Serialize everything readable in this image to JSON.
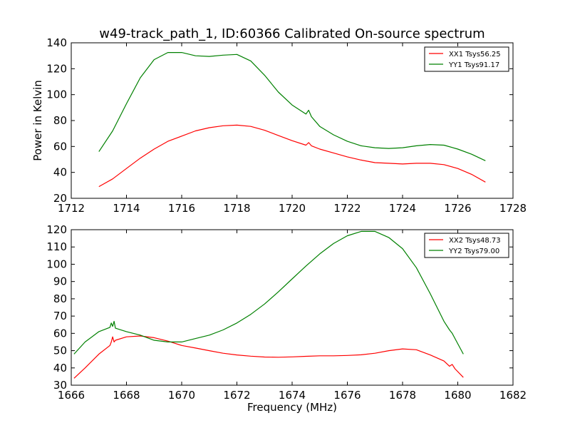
{
  "figure": {
    "title": "w49-track_path_1, ID:60366 Calibrated On-source spectrum",
    "xlabel": "Frequency (MHz)"
  },
  "colors": {
    "XX": "#ff0000",
    "YY": "#008000",
    "background": "#ffffff",
    "axes": "#000000"
  },
  "chart_data": [
    {
      "type": "line",
      "title": "w49-track_path_1, ID:60366 Calibrated On-source spectrum",
      "xlabel": "",
      "ylabel": "Power in Kelvin",
      "xlim": [
        1712,
        1728
      ],
      "ylim": [
        20,
        140
      ],
      "xticks": [
        "1712",
        "1714",
        "1716",
        "1718",
        "1720",
        "1722",
        "1724",
        "1726",
        "1728"
      ],
      "yticks": [
        "20",
        "40",
        "60",
        "80",
        "100",
        "120",
        "140"
      ],
      "grid": false,
      "legend_position": "top-right",
      "series": [
        {
          "name": "XX1 Tsys56.25",
          "color": "#ff0000",
          "x": [
            1713.0,
            1713.5,
            1714.0,
            1714.5,
            1715.0,
            1715.5,
            1716.0,
            1716.5,
            1717.0,
            1717.5,
            1718.0,
            1718.5,
            1719.0,
            1719.5,
            1720.0,
            1720.5,
            1720.6,
            1720.7,
            1721.0,
            1721.5,
            1722.0,
            1722.5,
            1723.0,
            1723.5,
            1724.0,
            1724.5,
            1725.0,
            1725.5,
            1726.0,
            1726.5,
            1727.0
          ],
          "y": [
            29,
            35,
            43,
            51,
            58,
            64,
            68,
            72,
            74.5,
            76,
            76.5,
            75.5,
            72.5,
            68.5,
            64.5,
            61,
            63,
            60.5,
            58,
            55,
            52,
            49.5,
            47.5,
            47,
            46.5,
            47,
            47,
            46,
            43,
            38.5,
            32.5
          ]
        },
        {
          "name": "YY1 Tsys91.17",
          "color": "#008000",
          "x": [
            1713.0,
            1713.5,
            1714.0,
            1714.5,
            1715.0,
            1715.5,
            1716.0,
            1716.5,
            1717.0,
            1717.5,
            1718.0,
            1718.5,
            1719.0,
            1719.5,
            1720.0,
            1720.5,
            1720.6,
            1720.7,
            1721.0,
            1721.5,
            1722.0,
            1722.5,
            1723.0,
            1723.5,
            1724.0,
            1724.5,
            1725.0,
            1725.5,
            1726.0,
            1726.5,
            1727.0
          ],
          "y": [
            56,
            72,
            93,
            113,
            127,
            132.5,
            132.5,
            130,
            129.5,
            130.5,
            131,
            126,
            115,
            102,
            92,
            85,
            88,
            83,
            75.5,
            69,
            64,
            60.5,
            59,
            58.5,
            59,
            60.5,
            61.5,
            61,
            58,
            54,
            49
          ]
        }
      ]
    },
    {
      "type": "line",
      "title": "",
      "xlabel": "Frequency (MHz)",
      "ylabel": "",
      "xlim": [
        1666,
        1682
      ],
      "ylim": [
        30,
        120
      ],
      "xticks": [
        "1666",
        "1668",
        "1670",
        "1672",
        "1674",
        "1676",
        "1678",
        "1680",
        "1682"
      ],
      "yticks": [
        "30",
        "40",
        "50",
        "60",
        "70",
        "80",
        "90",
        "100",
        "110",
        "120"
      ],
      "grid": false,
      "legend_position": "top-right",
      "series": [
        {
          "name": "XX2 Tsys48.73",
          "color": "#ff0000",
          "x": [
            1666.1,
            1666.5,
            1667.0,
            1667.4,
            1667.45,
            1667.5,
            1667.55,
            1667.6,
            1668.0,
            1668.5,
            1669.0,
            1669.5,
            1670.0,
            1670.5,
            1671.0,
            1671.5,
            1672.0,
            1672.5,
            1673.0,
            1673.5,
            1674.0,
            1674.5,
            1675.0,
            1675.5,
            1676.0,
            1676.5,
            1677.0,
            1677.5,
            1678.0,
            1678.5,
            1679.0,
            1679.5,
            1679.7,
            1679.8,
            1679.9,
            1680.2
          ],
          "y": [
            34,
            40,
            48,
            53,
            55,
            58,
            55,
            56,
            58,
            58.5,
            57.5,
            55.5,
            53,
            51.5,
            50,
            48.5,
            47.5,
            46.8,
            46.3,
            46.2,
            46.4,
            46.7,
            47,
            47,
            47.2,
            47.6,
            48.5,
            50,
            51,
            50.5,
            47.5,
            44,
            41,
            42,
            39.5,
            34.5
          ]
        },
        {
          "name": "YY2 Tsys79.00",
          "color": "#008000",
          "x": [
            1666.1,
            1666.5,
            1667.0,
            1667.4,
            1667.45,
            1667.5,
            1667.55,
            1667.6,
            1668.0,
            1668.5,
            1669.0,
            1669.5,
            1670.0,
            1670.5,
            1671.0,
            1671.5,
            1672.0,
            1672.5,
            1673.0,
            1673.5,
            1674.0,
            1674.5,
            1675.0,
            1675.5,
            1676.0,
            1676.5,
            1677.0,
            1677.5,
            1678.0,
            1678.5,
            1679.0,
            1679.5,
            1679.7,
            1679.8,
            1679.9,
            1680.2
          ],
          "y": [
            48,
            55,
            61,
            63.5,
            66,
            64,
            67,
            63,
            61,
            59,
            56,
            55,
            55,
            57,
            59,
            62,
            66,
            71,
            77,
            84,
            91.5,
            99,
            106,
            112,
            116.5,
            119,
            119,
            115.5,
            109,
            98,
            83,
            67,
            62,
            60,
            57,
            48
          ]
        }
      ]
    }
  ]
}
